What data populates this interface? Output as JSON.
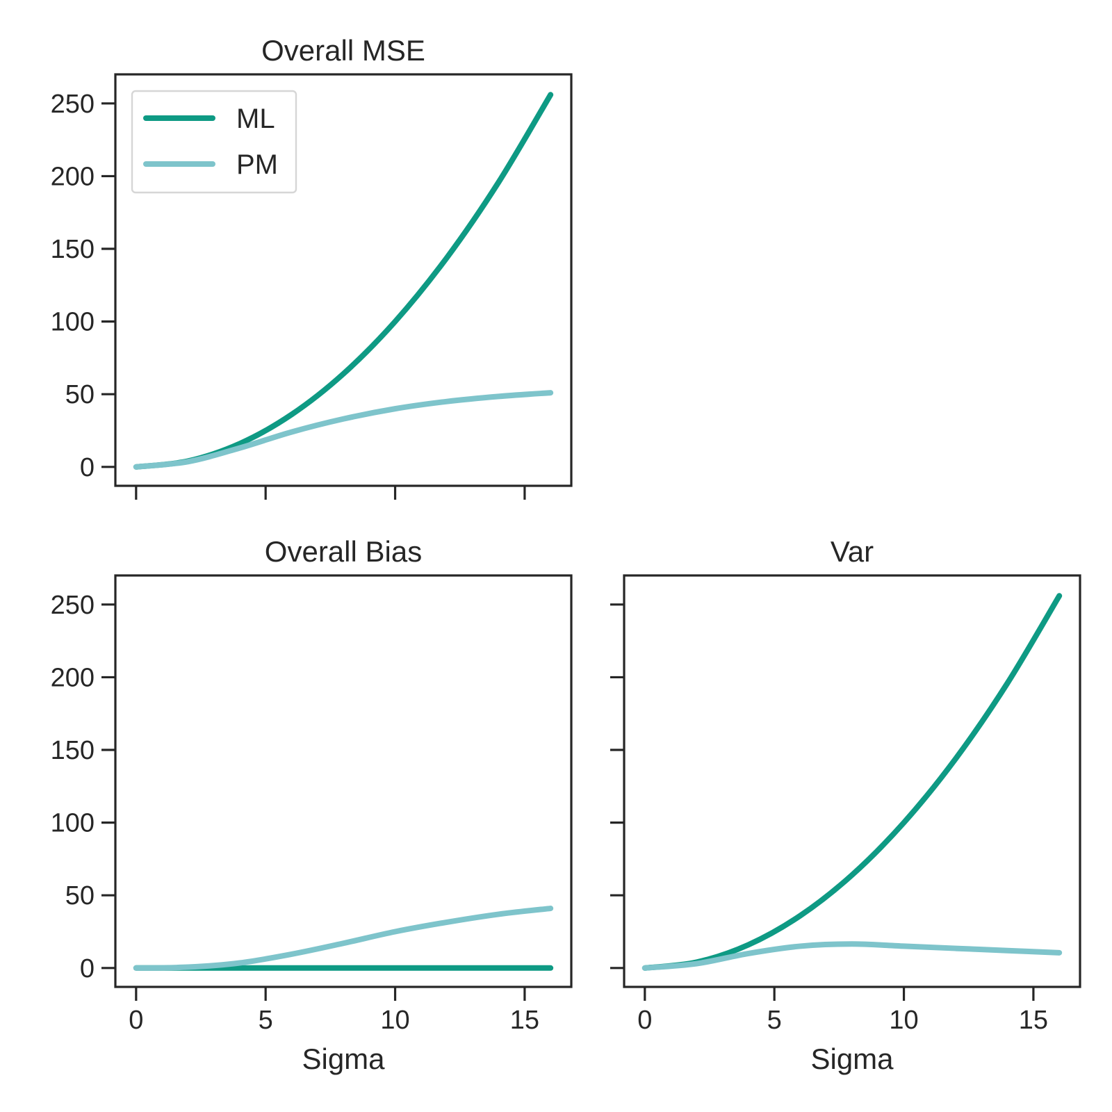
{
  "colors": {
    "ML": "#0e9a84",
    "PM": "#7ec4cb",
    "axis": "#262626"
  },
  "chart_data": [
    {
      "type": "line",
      "title": "Overall MSE",
      "xlabel": "",
      "ylabel": "",
      "xlim": [
        -0.8,
        16.8
      ],
      "ylim": [
        -13,
        270
      ],
      "xticks": [
        0,
        5,
        10,
        15
      ],
      "yticks": [
        0,
        50,
        100,
        150,
        200,
        250
      ],
      "show_xticklabels": false,
      "show_yticklabels": true,
      "legend": {
        "placement": "top-left",
        "entries": [
          "ML",
          "PM"
        ]
      },
      "grid": false,
      "x": [
        0,
        2,
        4,
        6,
        8,
        10,
        12,
        14,
        16
      ],
      "series": [
        {
          "name": "ML",
          "values": [
            0,
            4,
            16,
            36,
            64,
            100,
            144,
            196,
            256
          ]
        },
        {
          "name": "PM",
          "values": [
            0,
            3.6,
            13,
            24,
            33,
            40,
            45,
            48.5,
            51
          ]
        }
      ]
    },
    {
      "type": "line",
      "title": "Overall Bias",
      "xlabel": "Sigma",
      "ylabel": "",
      "xlim": [
        -0.8,
        16.8
      ],
      "ylim": [
        -13,
        270
      ],
      "xticks": [
        0,
        5,
        10,
        15
      ],
      "yticks": [
        0,
        50,
        100,
        150,
        200,
        250
      ],
      "show_xticklabels": true,
      "show_yticklabels": true,
      "grid": false,
      "x": [
        0,
        2,
        4,
        6,
        8,
        10,
        12,
        14,
        16
      ],
      "series": [
        {
          "name": "ML",
          "values": [
            0,
            0,
            0,
            0,
            0,
            0,
            0,
            0,
            0
          ]
        },
        {
          "name": "PM",
          "values": [
            0,
            0.6,
            3.5,
            9.5,
            17,
            25,
            31.5,
            37,
            41
          ]
        }
      ]
    },
    {
      "type": "line",
      "title": "Var",
      "xlabel": "Sigma",
      "ylabel": "",
      "xlim": [
        -0.8,
        16.8
      ],
      "ylim": [
        -13,
        270
      ],
      "xticks": [
        0,
        5,
        10,
        15
      ],
      "yticks": [
        0,
        50,
        100,
        150,
        200,
        250
      ],
      "show_xticklabels": true,
      "show_yticklabels": false,
      "grid": false,
      "x": [
        0,
        2,
        4,
        6,
        8,
        10,
        12,
        14,
        16
      ],
      "series": [
        {
          "name": "ML",
          "values": [
            0,
            4,
            16,
            36,
            64,
            100,
            144,
            196,
            256
          ]
        },
        {
          "name": "PM",
          "values": [
            0,
            3,
            10,
            15,
            16.5,
            15,
            13.5,
            12,
            10.5
          ]
        }
      ]
    }
  ]
}
